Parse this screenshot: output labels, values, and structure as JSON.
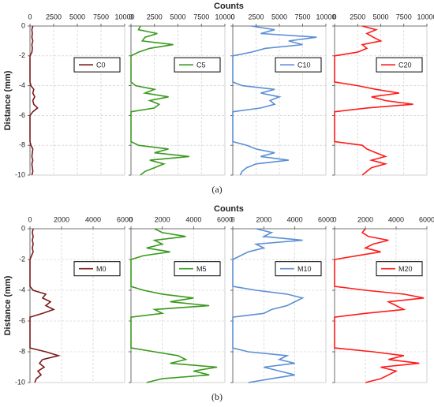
{
  "chart_data": [
    {
      "type": "line",
      "orientation": "horizontal",
      "title": "Counts",
      "ylabel": "Distance (mm)",
      "caption": "(a)",
      "y": [
        0,
        -0.25,
        -0.5,
        -0.75,
        -1,
        -1.25,
        -1.5,
        -1.75,
        -2,
        -2.25,
        -2.5,
        -2.75,
        -3,
        -3.25,
        -3.5,
        -3.75,
        -4,
        -4.25,
        -4.5,
        -4.75,
        -5,
        -5.25,
        -5.5,
        -5.75,
        -6,
        -6.25,
        -6.5,
        -6.75,
        -7,
        -7.25,
        -7.5,
        -7.75,
        -8,
        -8.25,
        -8.5,
        -8.75,
        -9,
        -9.25,
        -9.5,
        -9.75,
        -10
      ],
      "series": [
        {
          "name": "C0",
          "color": "#7b1a1a",
          "values": [
            300,
            200,
            250,
            200,
            300,
            200,
            250,
            200,
            0,
            0,
            0,
            0,
            0,
            0,
            0,
            0,
            100,
            400,
            300,
            500,
            300,
            400,
            800,
            300,
            0,
            0,
            0,
            0,
            0,
            0,
            0,
            0,
            100,
            300,
            250,
            200,
            300,
            200,
            250,
            300,
            200
          ]
        }
      ],
      "xlim": [
        0,
        10000
      ],
      "xticks": [
        0,
        2500,
        5000,
        7500,
        10000
      ],
      "ylim": [
        -10,
        0
      ],
      "yticks": [
        0,
        -2,
        -4,
        -6,
        -8,
        -10
      ],
      "grid": true
    },
    {
      "type": "line",
      "orientation": "horizontal",
      "y": [
        0,
        -0.25,
        -0.5,
        -0.75,
        -1,
        -1.25,
        -1.5,
        -1.75,
        -2,
        -2.25,
        -2.5,
        -2.75,
        -3,
        -3.25,
        -3.5,
        -3.75,
        -4,
        -4.25,
        -4.5,
        -4.75,
        -5,
        -5.25,
        -5.5,
        -5.75,
        -6,
        -6.25,
        -6.5,
        -6.75,
        -7,
        -7.25,
        -7.5,
        -7.75,
        -8,
        -8.25,
        -8.5,
        -8.75,
        -9,
        -9.25,
        -9.5,
        -9.75,
        -10
      ],
      "series": [
        {
          "name": "C5",
          "color": "#3a9a1e",
          "values": [
            1000,
            800,
            2800,
            1500,
            1200,
            4500,
            2000,
            800,
            0,
            0,
            0,
            0,
            0,
            0,
            0,
            0,
            500,
            2500,
            1500,
            4000,
            2000,
            3000,
            2500,
            0,
            0,
            0,
            0,
            0,
            0,
            0,
            0,
            0,
            800,
            4000,
            2500,
            6200,
            2000,
            3500,
            2500,
            1500,
            1000
          ]
        }
      ],
      "xlim": [
        0,
        10000
      ],
      "xticks": [
        0,
        2500,
        5000,
        7500,
        10000
      ],
      "ylim": [
        -10,
        0
      ],
      "yticks": [
        0,
        -2,
        -4,
        -6,
        -8,
        -10
      ],
      "grid": true
    },
    {
      "type": "line",
      "orientation": "horizontal",
      "y": [
        0,
        -0.25,
        -0.5,
        -0.75,
        -1,
        -1.25,
        -1.5,
        -1.75,
        -2,
        -2.25,
        -2.5,
        -2.75,
        -3,
        -3.25,
        -3.5,
        -3.75,
        -4,
        -4.25,
        -4.5,
        -4.75,
        -5,
        -5.25,
        -5.5,
        -5.75,
        -6,
        -6.25,
        -6.5,
        -6.75,
        -7,
        -7.25,
        -7.5,
        -7.75,
        -8,
        -8.25,
        -8.5,
        -8.75,
        -9,
        -9.25,
        -9.5,
        -9.75,
        -10
      ],
      "series": [
        {
          "name": "C10",
          "color": "#5b8fd6",
          "values": [
            2000,
            4500,
            3000,
            9000,
            6000,
            7500,
            3500,
            2000,
            0,
            0,
            0,
            0,
            0,
            0,
            0,
            0,
            1000,
            4500,
            3000,
            5000,
            4000,
            4500,
            3000,
            0,
            0,
            0,
            0,
            0,
            0,
            0,
            0,
            0,
            1500,
            2500,
            4500,
            3000,
            6000,
            2500,
            1500,
            1000,
            800
          ]
        }
      ],
      "xlim": [
        0,
        10000
      ],
      "xticks": [
        0,
        2500,
        5000,
        7500,
        10000
      ],
      "ylim": [
        -10,
        0
      ],
      "yticks": [
        0,
        -2,
        -4,
        -6,
        -8,
        -10
      ],
      "grid": true
    },
    {
      "type": "line",
      "orientation": "horizontal",
      "y": [
        0,
        -0.25,
        -0.5,
        -0.75,
        -1,
        -1.25,
        -1.5,
        -1.75,
        -2,
        -2.25,
        -2.5,
        -2.75,
        -3,
        -3.25,
        -3.5,
        -3.75,
        -4,
        -4.25,
        -4.5,
        -4.75,
        -5,
        -5.25,
        -5.5,
        -5.75,
        -6,
        -6.25,
        -6.5,
        -6.75,
        -7,
        -7.25,
        -7.5,
        -7.75,
        -8,
        -8.25,
        -8.5,
        -8.75,
        -9,
        -9.25,
        -9.5,
        -9.75,
        -10
      ],
      "series": [
        {
          "name": "C20",
          "color": "#ff1a1a",
          "values": [
            3000,
            4500,
            3500,
            4200,
            5000,
            3000,
            3500,
            2500,
            0,
            0,
            0,
            0,
            0,
            0,
            0,
            0,
            2500,
            4500,
            7000,
            4000,
            5500,
            8500,
            3500,
            0,
            0,
            0,
            0,
            0,
            0,
            0,
            0,
            0,
            3000,
            3500,
            4500,
            5500,
            4000,
            5500,
            4000,
            3500,
            3000
          ]
        }
      ],
      "xlim": [
        0,
        10000
      ],
      "xticks": [
        0,
        2500,
        5000,
        7500,
        10000
      ],
      "ylim": [
        -10,
        0
      ],
      "yticks": [
        0,
        -2,
        -4,
        -6,
        -8,
        -10
      ],
      "grid": true
    },
    {
      "type": "line",
      "orientation": "horizontal",
      "title": "Counts",
      "ylabel": "Distance (mm)",
      "caption": "(b)",
      "y": [
        0,
        -0.25,
        -0.5,
        -0.75,
        -1,
        -1.25,
        -1.5,
        -1.75,
        -2,
        -2.25,
        -2.5,
        -2.75,
        -3,
        -3.25,
        -3.5,
        -3.75,
        -4,
        -4.25,
        -4.5,
        -4.75,
        -5,
        -5.25,
        -5.5,
        -5.75,
        -6,
        -6.25,
        -6.5,
        -6.75,
        -7,
        -7.25,
        -7.5,
        -7.75,
        -8,
        -8.25,
        -8.5,
        -8.75,
        -9,
        -9.25,
        -9.5,
        -9.75,
        -10
      ],
      "series": [
        {
          "name": "M0",
          "color": "#7b1a1a",
          "values": [
            200,
            150,
            200,
            150,
            200,
            150,
            200,
            100,
            0,
            0,
            0,
            0,
            0,
            0,
            0,
            0,
            200,
            1000,
            800,
            1300,
            1000,
            1500,
            800,
            0,
            0,
            0,
            0,
            0,
            0,
            0,
            0,
            0,
            1000,
            1800,
            800,
            600,
            900,
            500,
            700,
            400,
            300
          ]
        }
      ],
      "xlim": [
        0,
        6000
      ],
      "xticks": [
        0,
        2000,
        4000,
        6000
      ],
      "ylim": [
        -10,
        0
      ],
      "yticks": [
        0,
        -2,
        -4,
        -6,
        -8,
        -10
      ],
      "grid": true
    },
    {
      "type": "line",
      "orientation": "horizontal",
      "y": [
        0,
        -0.25,
        -0.5,
        -0.75,
        -1,
        -1.25,
        -1.5,
        -1.75,
        -2,
        -2.25,
        -2.5,
        -2.75,
        -3,
        -3.25,
        -3.5,
        -3.75,
        -4,
        -4.25,
        -4.5,
        -4.75,
        -5,
        -5.25,
        -5.5,
        -5.75,
        -6,
        -6.25,
        -6.5,
        -6.75,
        -7,
        -7.25,
        -7.5,
        -7.75,
        -8,
        -8.25,
        -8.5,
        -8.75,
        -9,
        -9.25,
        -9.5,
        -9.75,
        -10
      ],
      "series": [
        {
          "name": "M5",
          "color": "#3a9a1e",
          "values": [
            1500,
            2000,
            3500,
            1500,
            2000,
            1000,
            2500,
            800,
            0,
            0,
            0,
            0,
            0,
            0,
            0,
            0,
            800,
            2000,
            4000,
            2500,
            5000,
            1500,
            2000,
            0,
            0,
            0,
            0,
            0,
            0,
            0,
            0,
            0,
            1500,
            3000,
            3500,
            2500,
            5500,
            4000,
            5000,
            2000,
            1000
          ]
        }
      ],
      "xlim": [
        0,
        6000
      ],
      "xticks": [
        0,
        2000,
        4000,
        6000
      ],
      "ylim": [
        -10,
        0
      ],
      "yticks": [
        0,
        -2,
        -4,
        -6,
        -8,
        -10
      ],
      "grid": true
    },
    {
      "type": "line",
      "orientation": "horizontal",
      "y": [
        0,
        -0.25,
        -0.5,
        -0.75,
        -1,
        -1.25,
        -1.5,
        -1.75,
        -2,
        -2.25,
        -2.5,
        -2.75,
        -3,
        -3.25,
        -3.5,
        -3.75,
        -4,
        -4.25,
        -4.5,
        -4.75,
        -5,
        -5.25,
        -5.5,
        -5.75,
        -6,
        -6.25,
        -6.5,
        -6.75,
        -7,
        -7.25,
        -7.5,
        -7.75,
        -8,
        -8.25,
        -8.5,
        -8.75,
        -9,
        -9.25,
        -9.5,
        -9.75,
        -10
      ],
      "series": [
        {
          "name": "M10",
          "color": "#5b8fd6",
          "values": [
            1500,
            2500,
            2000,
            4500,
            1500,
            2000,
            1000,
            500,
            0,
            0,
            0,
            0,
            0,
            0,
            0,
            0,
            1500,
            3500,
            4500,
            4000,
            3500,
            2500,
            2000,
            0,
            0,
            0,
            0,
            0,
            0,
            0,
            0,
            0,
            1000,
            3500,
            3000,
            4000,
            2000,
            3000,
            4000,
            2500,
            1000
          ]
        }
      ],
      "xlim": [
        0,
        6000
      ],
      "xticks": [
        0,
        2000,
        4000,
        6000
      ],
      "ylim": [
        -10,
        0
      ],
      "yticks": [
        0,
        -2,
        -4,
        -6,
        -8,
        -10
      ],
      "grid": true
    },
    {
      "type": "line",
      "orientation": "horizontal",
      "y": [
        0,
        -0.25,
        -0.5,
        -0.75,
        -1,
        -1.25,
        -1.5,
        -1.75,
        -2,
        -2.25,
        -2.5,
        -2.75,
        -3,
        -3.25,
        -3.5,
        -3.75,
        -4,
        -4.25,
        -4.5,
        -4.75,
        -5,
        -5.25,
        -5.5,
        -5.75,
        -6,
        -6.25,
        -6.5,
        -6.75,
        -7,
        -7.25,
        -7.5,
        -7.75,
        -8,
        -8.25,
        -8.5,
        -8.75,
        -9,
        -9.25,
        -9.5,
        -9.75,
        -10
      ],
      "series": [
        {
          "name": "M20",
          "color": "#ff1a1a",
          "values": [
            2000,
            1800,
            2200,
            3500,
            2500,
            2000,
            3000,
            1500,
            0,
            0,
            0,
            0,
            0,
            0,
            0,
            0,
            2000,
            4500,
            5800,
            3500,
            4000,
            4500,
            2000,
            0,
            0,
            0,
            0,
            0,
            0,
            0,
            0,
            0,
            2500,
            4500,
            3500,
            5500,
            3000,
            4000,
            3500,
            3000,
            2000
          ]
        }
      ],
      "xlim": [
        0,
        6000
      ],
      "xticks": [
        0,
        2000,
        4000,
        6000
      ],
      "ylim": [
        -10,
        0
      ],
      "yticks": [
        0,
        -2,
        -4,
        -6,
        -8,
        -10
      ],
      "grid": true
    }
  ]
}
